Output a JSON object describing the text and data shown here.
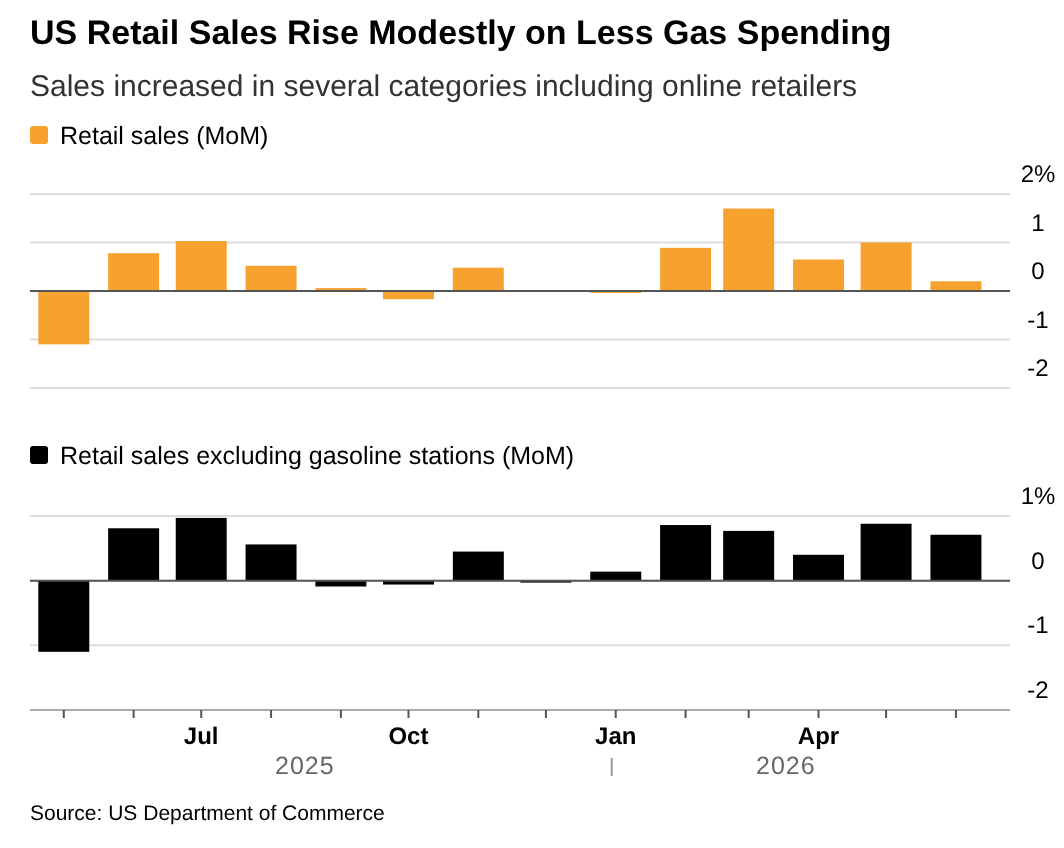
{
  "chart_data": [
    {
      "type": "bar",
      "title": "US Retail Sales Rise Modestly on Less Gas Spending",
      "subtitle": "Sales increased in several categories including online retailers",
      "x": [
        "2025-05",
        "2025-06",
        "2025-07",
        "2025-08",
        "2025-09",
        "2025-10",
        "2025-11",
        "2025-12",
        "2026-01",
        "2026-02",
        "2026-03",
        "2026-04",
        "2026-05",
        "2026-06"
      ],
      "series": [
        {
          "name": "Retail sales (MoM)",
          "color": "#f7a22e",
          "values": [
            -1.1,
            0.78,
            1.03,
            0.52,
            0.06,
            -0.17,
            0.48,
            0,
            -0.04,
            0.89,
            1.7,
            0.65,
            1.0,
            0.2
          ]
        }
      ],
      "xlim": [
        "2025-04-16",
        "2026-06-25"
      ],
      "ylim": [
        -2,
        2
      ],
      "yticks": [
        {
          "value": 2,
          "label": "2%"
        },
        1,
        0,
        -1,
        -2
      ],
      "grid": "y",
      "legend": "top left",
      "tick_labels": "y"
    },
    {
      "type": "bar",
      "x": [
        "2025-05",
        "2025-06",
        "2025-07",
        "2025-08",
        "2025-09",
        "2025-10",
        "2025-11",
        "2025-12",
        "2026-01",
        "2026-02",
        "2026-03",
        "2026-04",
        "2026-05",
        "2026-06"
      ],
      "series": [
        {
          "name": "Retail sales excluding gasoline stations (MoM)",
          "color": "#000000",
          "values": [
            -1.1,
            0.81,
            0.97,
            0.56,
            -0.09,
            -0.06,
            0.45,
            -0.03,
            0.14,
            0.86,
            0.77,
            0.4,
            0.88,
            0.71
          ]
        }
      ],
      "xlim": [
        "2025-04-16",
        "2026-06-25"
      ],
      "xticks": [
        {
          "value": "2025-05",
          "label": null
        },
        {
          "value": "2025-06",
          "label": null
        },
        {
          "value": "2025-07",
          "label": "Jul"
        },
        {
          "value": "2025-08",
          "label": null
        },
        {
          "value": "2025-09",
          "label": null
        },
        {
          "value": "2025-10",
          "label": "Oct"
        },
        {
          "value": "2025-11",
          "label": null
        },
        {
          "value": "2025-12",
          "label": null
        },
        {
          "value": "2026-01",
          "label": "Jan"
        },
        {
          "value": "2026-02",
          "label": null
        },
        {
          "value": "2026-03",
          "label": null
        },
        {
          "value": "2026-04",
          "label": "Apr"
        },
        {
          "value": "2026-05",
          "label": null
        },
        {
          "value": "2026-06",
          "label": null
        }
      ],
      "ylim": [
        -2,
        1
      ],
      "yticks": [
        {
          "value": 1,
          "label": "1%"
        },
        0,
        -1,
        -2
      ],
      "grid": "y",
      "legend": "top left",
      "annotations": [
        "2025",
        "2026",
        "Source: US Department of Commerce"
      ]
    }
  ]
}
